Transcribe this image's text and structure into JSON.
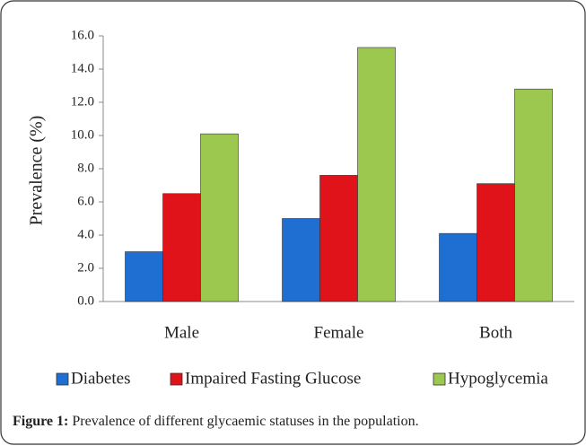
{
  "chart_data": {
    "type": "bar",
    "y_label": "Prevalence (%)",
    "categories": [
      "Male",
      "Female",
      "Both"
    ],
    "series": [
      {
        "name": "Diabetes",
        "color": "#1f6fd2",
        "values": [
          3.0,
          5.0,
          4.1
        ]
      },
      {
        "name": "Impaired Fasting Glucose",
        "color": "#e0121a",
        "values": [
          6.5,
          7.6,
          7.1
        ]
      },
      {
        "name": "Hypoglycemia",
        "color": "#9cc850",
        "values": [
          10.1,
          15.3,
          12.8
        ]
      }
    ],
    "ylim": [
      0,
      16
    ],
    "yticks": [
      {
        "value": 0,
        "label": "0.0"
      },
      {
        "value": 2,
        "label": "2.0"
      },
      {
        "value": 4,
        "label": "4.0"
      },
      {
        "value": 6,
        "label": "6.0"
      },
      {
        "value": 8,
        "label": "8.0"
      },
      {
        "value": 10,
        "label": "10.0"
      },
      {
        "value": 12,
        "label": "12.0"
      },
      {
        "value": 14,
        "label": "14.0"
      },
      {
        "value": 16,
        "label": "16.0"
      }
    ],
    "legend": "bottom"
  },
  "caption": {
    "label": "Figure 1:",
    "text": "Prevalence of different glycaemic statuses in the population."
  }
}
